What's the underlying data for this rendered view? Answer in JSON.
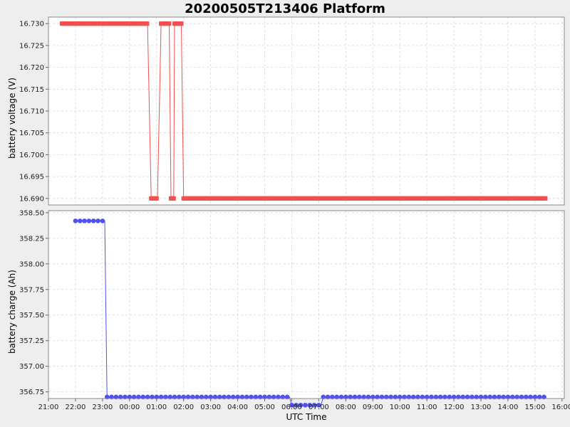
{
  "title": "20200505T213406 Platform",
  "chart_data": [
    {
      "type": "line",
      "ylabel": "battery voltage (V)",
      "xlabel": "",
      "ylim": [
        16.6885,
        16.7315
      ],
      "xlim": [
        "21:00",
        "16:05"
      ],
      "y_ticks": [
        "16.730",
        "16.725",
        "16.720",
        "16.715",
        "16.710",
        "16.705",
        "16.700",
        "16.695",
        "16.690"
      ],
      "grid": true,
      "color": "#f05050",
      "marker": "square",
      "series": [
        {
          "x": [
            "21:30",
            "00:40",
            "00:48",
            "01:02",
            "01:10",
            "01:28",
            "01:32",
            "01:38",
            "01:40",
            "01:46",
            "01:55",
            "02:00",
            "11:50",
            "15:25"
          ],
          "values": [
            16.73,
            16.73,
            16.69,
            16.69,
            16.73,
            16.73,
            16.69,
            16.69,
            16.73,
            16.73,
            16.73,
            16.69,
            16.69,
            16.69
          ]
        }
      ]
    },
    {
      "type": "line",
      "ylabel": "battery charge (Ah)",
      "xlabel": "UTC Time",
      "ylim": [
        356.685,
        358.52
      ],
      "xlim": [
        "21:00",
        "16:05"
      ],
      "x_ticks": [
        "21:00",
        "22:00",
        "23:00",
        "00:00",
        "01:00",
        "02:00",
        "03:00",
        "04:00",
        "05:00",
        "06:00",
        "07:00",
        "08:00",
        "09:00",
        "10:00",
        "11:00",
        "12:00",
        "13:00",
        "14:00",
        "15:00",
        "16:00"
      ],
      "y_ticks": [
        "358.50",
        "358.25",
        "358.00",
        "357.75",
        "357.50",
        "357.25",
        "357.00",
        "356.75"
      ],
      "grid": true,
      "color": "#5050f0",
      "marker": "circle",
      "series": [
        {
          "x": [
            "22:00",
            "23:05",
            "23:10",
            "05:55",
            "06:00",
            "07:05",
            "07:10",
            "15:25"
          ],
          "values": [
            358.42,
            358.42,
            356.7,
            356.7,
            356.62,
            356.62,
            356.7,
            356.7
          ]
        }
      ]
    }
  ]
}
